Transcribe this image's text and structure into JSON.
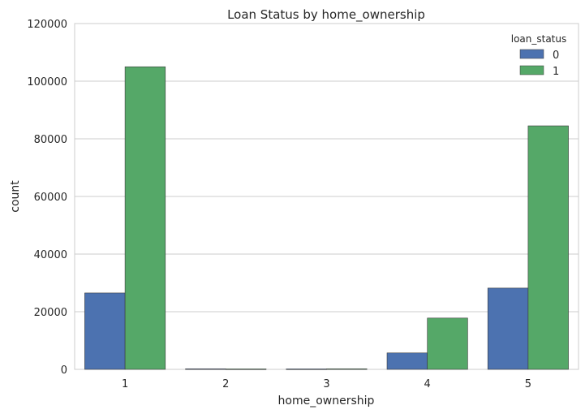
{
  "chart_data": {
    "type": "bar",
    "title": "Loan Status by home_ownership",
    "xlabel": "home_ownership",
    "ylabel": "count",
    "categories": [
      "1",
      "2",
      "3",
      "4",
      "5"
    ],
    "series": [
      {
        "name": "0",
        "values": [
          26500,
          200,
          150,
          5700,
          28200
        ],
        "color": "#4c72b0"
      },
      {
        "name": "1",
        "values": [
          105000,
          150,
          200,
          17800,
          84500
        ],
        "color": "#55a868"
      }
    ],
    "ylim": [
      0,
      120000
    ],
    "yticks": [
      "0",
      "20000",
      "40000",
      "60000",
      "80000",
      "100000",
      "120000"
    ],
    "grid": true,
    "legend": {
      "title": "loan_status",
      "placement": "top-right"
    }
  }
}
